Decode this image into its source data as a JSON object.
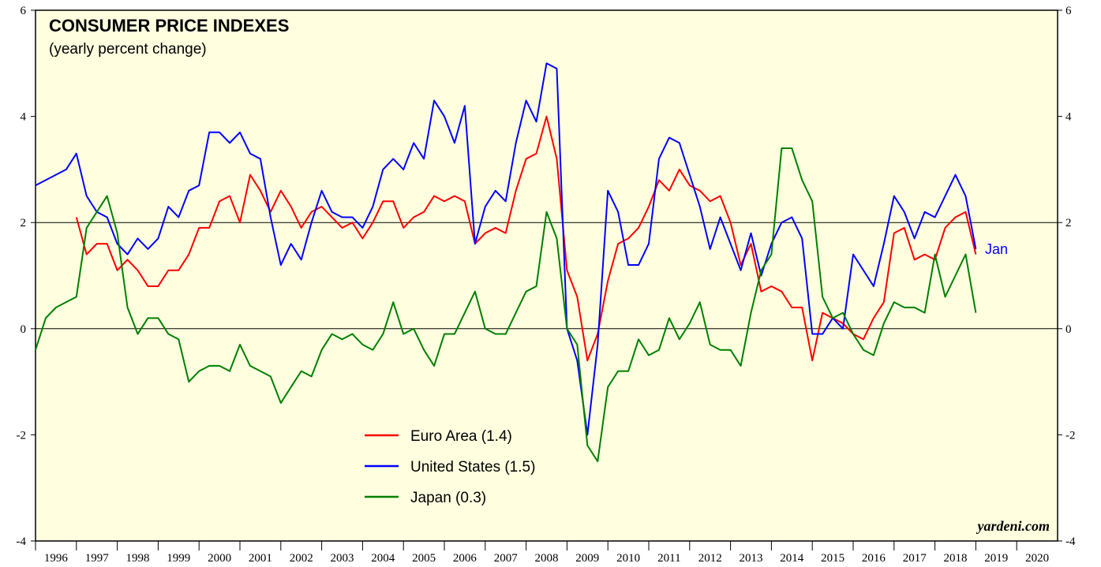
{
  "chart_data": {
    "type": "line",
    "title": "CONSUMER PRICE INDEXES",
    "subtitle": "(yearly percent change)",
    "annotations": [
      "Jan",
      "yardeni.com"
    ],
    "categories": [
      "1996",
      "1997",
      "1998",
      "1999",
      "2000",
      "2001",
      "2002",
      "2003",
      "2004",
      "2005",
      "2006",
      "2007",
      "2008",
      "2009",
      "2010",
      "2011",
      "2012",
      "2013",
      "2014",
      "2015",
      "2016",
      "2017",
      "2018",
      "2019",
      "2020"
    ],
    "xlim": [
      1996,
      2021
    ],
    "ylim": [
      -4,
      6
    ],
    "yticks": [
      -4,
      -2,
      0,
      2,
      4,
      6
    ],
    "y2lim": [
      -4,
      6
    ],
    "y2ticks": [
      -4,
      -2,
      0,
      2,
      4,
      6
    ],
    "reference_lines": [
      0,
      2
    ],
    "series": [
      {
        "name": "Euro Area (1.4)",
        "color": "#ff0000",
        "x": [
          1997,
          1997.25,
          1997.5,
          1997.75,
          1998,
          1998.25,
          1998.5,
          1998.75,
          1999,
          1999.25,
          1999.5,
          1999.75,
          2000,
          2000.25,
          2000.5,
          2000.75,
          2001,
          2001.25,
          2001.5,
          2001.75,
          2002,
          2002.25,
          2002.5,
          2002.75,
          2003,
          2003.25,
          2003.5,
          2003.75,
          2004,
          2004.25,
          2004.5,
          2004.75,
          2005,
          2005.25,
          2005.5,
          2005.75,
          2006,
          2006.25,
          2006.5,
          2006.75,
          2007,
          2007.25,
          2007.5,
          2007.75,
          2008,
          2008.25,
          2008.5,
          2008.75,
          2009,
          2009.25,
          2009.5,
          2009.75,
          2010,
          2010.25,
          2010.5,
          2010.75,
          2011,
          2011.25,
          2011.5,
          2011.75,
          2012,
          2012.25,
          2012.5,
          2012.75,
          2013,
          2013.25,
          2013.5,
          2013.75,
          2014,
          2014.25,
          2014.5,
          2014.75,
          2015,
          2015.25,
          2015.5,
          2015.75,
          2016,
          2016.25,
          2016.5,
          2016.75,
          2017,
          2017.25,
          2017.5,
          2017.75,
          2018,
          2018.25,
          2018.5,
          2018.75,
          2019
        ],
        "values": [
          2.1,
          1.4,
          1.6,
          1.6,
          1.1,
          1.3,
          1.1,
          0.8,
          0.8,
          1.1,
          1.1,
          1.4,
          1.9,
          1.9,
          2.4,
          2.5,
          2.0,
          2.9,
          2.6,
          2.2,
          2.6,
          2.3,
          1.9,
          2.2,
          2.3,
          2.1,
          1.9,
          2.0,
          1.7,
          2.0,
          2.4,
          2.4,
          1.9,
          2.1,
          2.2,
          2.5,
          2.4,
          2.5,
          2.4,
          1.6,
          1.8,
          1.9,
          1.8,
          2.6,
          3.2,
          3.3,
          4.0,
          3.2,
          1.1,
          0.6,
          -0.6,
          -0.1,
          0.9,
          1.6,
          1.7,
          1.9,
          2.3,
          2.8,
          2.6,
          3.0,
          2.7,
          2.6,
          2.4,
          2.5,
          2.0,
          1.2,
          1.6,
          0.7,
          0.8,
          0.7,
          0.4,
          0.4,
          -0.6,
          0.3,
          0.2,
          0.1,
          -0.1,
          -0.2,
          0.2,
          0.5,
          1.8,
          1.9,
          1.3,
          1.4,
          1.3,
          1.9,
          2.1,
          2.2,
          1.4
        ]
      },
      {
        "name": "United States (1.5)",
        "color": "#0000ff",
        "x": [
          1996,
          1996.25,
          1996.5,
          1996.75,
          1997,
          1997.25,
          1997.5,
          1997.75,
          1998,
          1998.25,
          1998.5,
          1998.75,
          1999,
          1999.25,
          1999.5,
          1999.75,
          2000,
          2000.25,
          2000.5,
          2000.75,
          2001,
          2001.25,
          2001.5,
          2001.75,
          2002,
          2002.25,
          2002.5,
          2002.75,
          2003,
          2003.25,
          2003.5,
          2003.75,
          2004,
          2004.25,
          2004.5,
          2004.75,
          2005,
          2005.25,
          2005.5,
          2005.75,
          2006,
          2006.25,
          2006.5,
          2006.75,
          2007,
          2007.25,
          2007.5,
          2007.75,
          2008,
          2008.25,
          2008.5,
          2008.75,
          2009,
          2009.25,
          2009.5,
          2009.75,
          2010,
          2010.25,
          2010.5,
          2010.75,
          2011,
          2011.25,
          2011.5,
          2011.75,
          2012,
          2012.25,
          2012.5,
          2012.75,
          2013,
          2013.25,
          2013.5,
          2013.75,
          2014,
          2014.25,
          2014.5,
          2014.75,
          2015,
          2015.25,
          2015.5,
          2015.75,
          2016,
          2016.25,
          2016.5,
          2016.75,
          2017,
          2017.25,
          2017.5,
          2017.75,
          2018,
          2018.25,
          2018.5,
          2018.75,
          2019
        ],
        "values": [
          2.7,
          2.8,
          2.9,
          3.0,
          3.3,
          2.5,
          2.2,
          2.1,
          1.6,
          1.4,
          1.7,
          1.5,
          1.7,
          2.3,
          2.1,
          2.6,
          2.7,
          3.7,
          3.7,
          3.5,
          3.7,
          3.3,
          3.2,
          2.1,
          1.2,
          1.6,
          1.3,
          2.0,
          2.6,
          2.2,
          2.1,
          2.1,
          1.9,
          2.3,
          3.0,
          3.2,
          3.0,
          3.5,
          3.2,
          4.3,
          4.0,
          3.5,
          4.2,
          1.6,
          2.3,
          2.6,
          2.4,
          3.5,
          4.3,
          3.9,
          5.0,
          4.9,
          0.0,
          -0.6,
          -2.0,
          -0.3,
          2.6,
          2.2,
          1.2,
          1.2,
          1.6,
          3.2,
          3.6,
          3.5,
          2.9,
          2.3,
          1.5,
          2.1,
          1.6,
          1.1,
          1.8,
          1.0,
          1.6,
          2.0,
          2.1,
          1.7,
          -0.1,
          -0.1,
          0.2,
          0.0,
          1.4,
          1.1,
          0.8,
          1.6,
          2.5,
          2.2,
          1.7,
          2.2,
          2.1,
          2.5,
          2.9,
          2.5,
          1.5
        ]
      },
      {
        "name": "Japan (0.3)",
        "color": "#008000",
        "x": [
          1996,
          1996.25,
          1996.5,
          1996.75,
          1997,
          1997.25,
          1997.5,
          1997.75,
          1998,
          1998.25,
          1998.5,
          1998.75,
          1999,
          1999.25,
          1999.5,
          1999.75,
          2000,
          2000.25,
          2000.5,
          2000.75,
          2001,
          2001.25,
          2001.5,
          2001.75,
          2002,
          2002.25,
          2002.5,
          2002.75,
          2003,
          2003.25,
          2003.5,
          2003.75,
          2004,
          2004.25,
          2004.5,
          2004.75,
          2005,
          2005.25,
          2005.5,
          2005.75,
          2006,
          2006.25,
          2006.5,
          2006.75,
          2007,
          2007.25,
          2007.5,
          2007.75,
          2008,
          2008.25,
          2008.5,
          2008.75,
          2009,
          2009.25,
          2009.5,
          2009.75,
          2010,
          2010.25,
          2010.5,
          2010.75,
          2011,
          2011.25,
          2011.5,
          2011.75,
          2012,
          2012.25,
          2012.5,
          2012.75,
          2013,
          2013.25,
          2013.5,
          2013.75,
          2014,
          2014.25,
          2014.5,
          2014.75,
          2015,
          2015.25,
          2015.5,
          2015.75,
          2016,
          2016.25,
          2016.5,
          2016.75,
          2017,
          2017.25,
          2017.5,
          2017.75,
          2018,
          2018.25,
          2018.5,
          2018.75,
          2019
        ],
        "values": [
          -0.4,
          0.2,
          0.4,
          0.5,
          0.6,
          1.9,
          2.2,
          2.5,
          1.8,
          0.4,
          -0.1,
          0.2,
          0.2,
          -0.1,
          -0.2,
          -1.0,
          -0.8,
          -0.7,
          -0.7,
          -0.8,
          -0.3,
          -0.7,
          -0.8,
          -0.9,
          -1.4,
          -1.1,
          -0.8,
          -0.9,
          -0.4,
          -0.1,
          -0.2,
          -0.1,
          -0.3,
          -0.4,
          -0.1,
          0.5,
          -0.1,
          0.0,
          -0.4,
          -0.7,
          -0.1,
          -0.1,
          0.3,
          0.7,
          0.0,
          -0.1,
          -0.1,
          0.3,
          0.7,
          0.8,
          2.2,
          1.7,
          0.0,
          -0.3,
          -2.2,
          -2.5,
          -1.1,
          -0.8,
          -0.8,
          -0.2,
          -0.5,
          -0.4,
          0.2,
          -0.2,
          0.1,
          0.5,
          -0.3,
          -0.4,
          -0.4,
          -0.7,
          0.3,
          1.1,
          1.4,
          3.4,
          3.4,
          2.8,
          2.4,
          0.6,
          0.2,
          0.3,
          -0.1,
          -0.4,
          -0.5,
          0.1,
          0.5,
          0.4,
          0.4,
          0.3,
          1.4,
          0.6,
          1.0,
          1.4,
          0.3
        ]
      }
    ]
  }
}
